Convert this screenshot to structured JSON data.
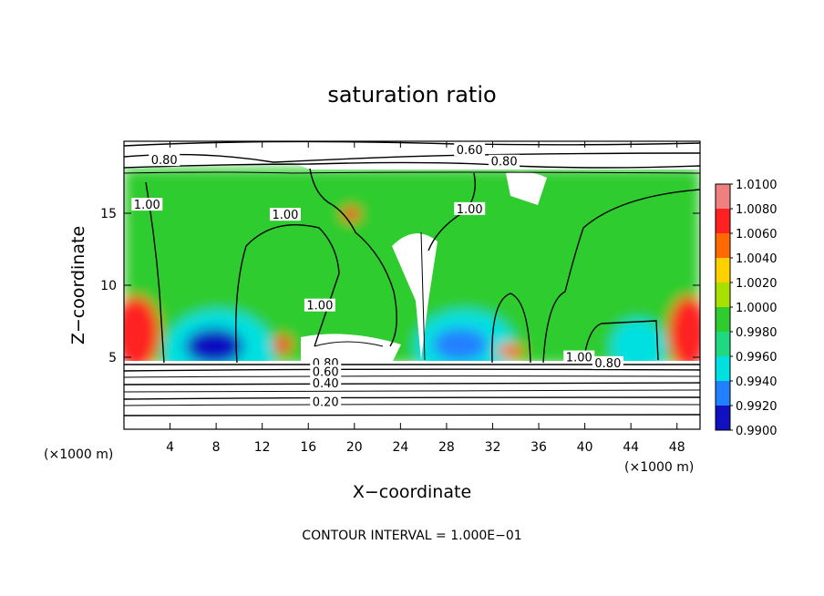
{
  "chart_data": {
    "type": "heatmap",
    "title": "saturation ratio",
    "xlabel": "X−coordinate",
    "ylabel": "Z−coordinate",
    "x_unit": "(×1000 m)",
    "z_unit": "(×1000 m)",
    "xlim": [
      0,
      50
    ],
    "ylim": [
      0,
      20
    ],
    "x_ticks": [
      4,
      8,
      12,
      16,
      20,
      24,
      28,
      32,
      36,
      40,
      44,
      48
    ],
    "y_ticks": [
      5,
      10,
      15
    ],
    "footer": "CONTOUR INTERVAL = 1.000E−01",
    "colorbar": {
      "levels": [
        "1.0100",
        "1.0080",
        "1.0060",
        "1.0040",
        "1.0020",
        "1.0000",
        "0.9980",
        "0.9960",
        "0.9940",
        "0.9920",
        "0.9900"
      ],
      "colors": [
        "#f08080",
        "#ff2020",
        "#ff6a00",
        "#ffd000",
        "#a8e000",
        "#2ecc2e",
        "#20d880",
        "#00e0e0",
        "#2080ff",
        "#1010c0",
        "#6010a0"
      ]
    },
    "contour_labels": [
      {
        "text": "0.60",
        "x": 30,
        "z": 19.3
      },
      {
        "text": "0.80",
        "x": 3.5,
        "z": 18.6
      },
      {
        "text": "0.80",
        "x": 33,
        "z": 18.5
      },
      {
        "text": "1.00",
        "x": 2,
        "z": 15.5
      },
      {
        "text": "1.00",
        "x": 14,
        "z": 14.8
      },
      {
        "text": "1.00",
        "x": 30,
        "z": 15.2
      },
      {
        "text": "1.00",
        "x": 17,
        "z": 8.5
      },
      {
        "text": "0.80",
        "x": 17.5,
        "z": 4.5
      },
      {
        "text": "0.60",
        "x": 17.5,
        "z": 3.9
      },
      {
        "text": "0.40",
        "x": 17.5,
        "z": 3.1
      },
      {
        "text": "0.20",
        "x": 17.5,
        "z": 1.8
      },
      {
        "text": "1.00",
        "x": 39.5,
        "z": 4.9
      },
      {
        "text": "0.80",
        "x": 42,
        "z": 4.5
      }
    ]
  }
}
